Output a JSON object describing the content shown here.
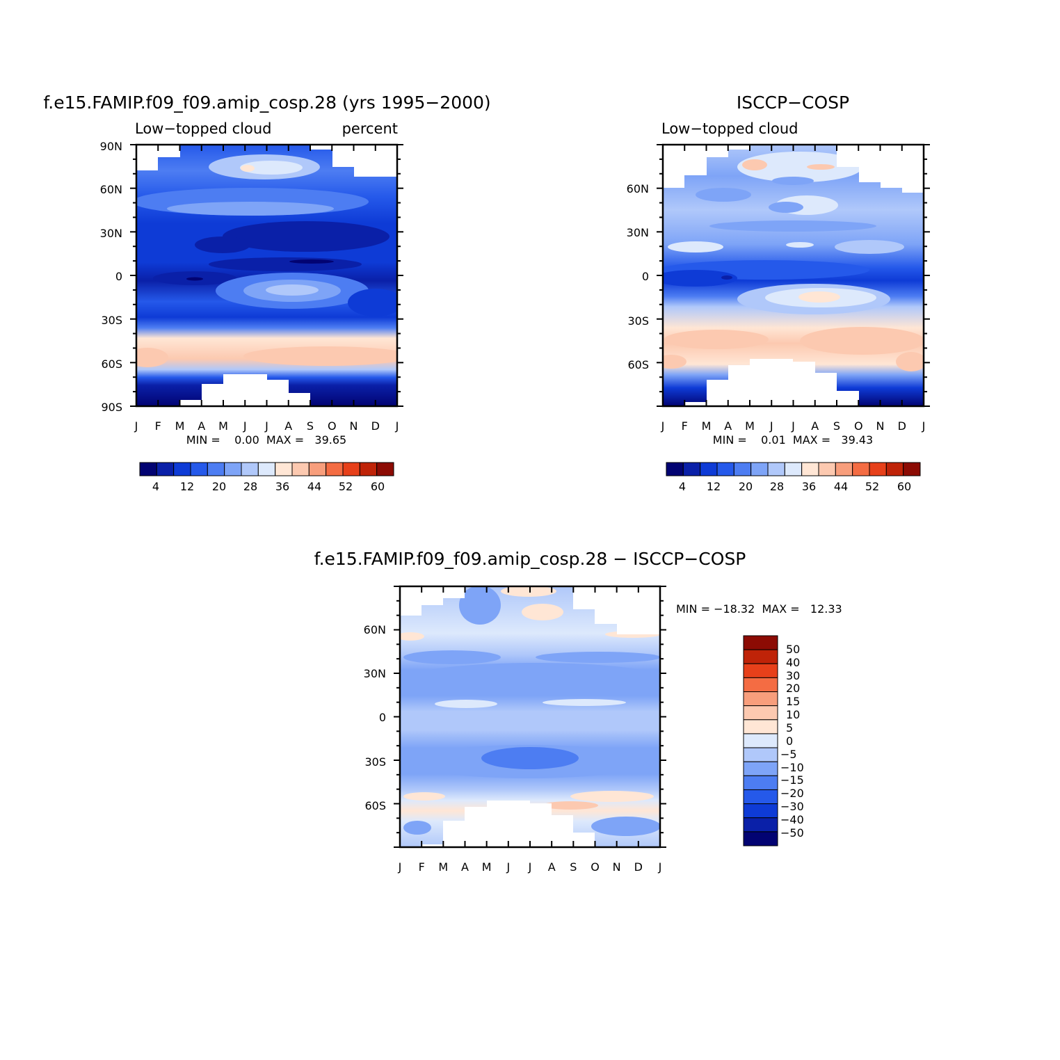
{
  "months": [
    "J",
    "F",
    "M",
    "A",
    "M",
    "J",
    "J",
    "A",
    "S",
    "O",
    "N",
    "D",
    "J"
  ],
  "colors": {
    "abs": [
      "#020372",
      "#0a20a8",
      "#0e3bd6",
      "#2559ea",
      "#4d7df2",
      "#7ea4f7",
      "#b0c8fa",
      "#dde9fc",
      "#ffe6d5",
      "#fcc9b0",
      "#f89e7c",
      "#f46c43",
      "#e7401a",
      "#bf2308",
      "#8c0b04"
    ],
    "diff": [
      "#020372",
      "#0a20a8",
      "#0e3bd6",
      "#2559ea",
      "#4d7df2",
      "#7ea4f7",
      "#b0c8fa",
      "#dde9fc",
      "#ffe6d5",
      "#fcc9b0",
      "#f89e7c",
      "#f46c43",
      "#e7401a",
      "#bf2308",
      "#8c0b04"
    ]
  },
  "panel1": {
    "title": "f.e15.FAMIP.f09_f09.amip_cosp.28 (yrs 1995−2000)",
    "left_label": "Low−topped cloud",
    "right_label": "percent",
    "y_ticks": [
      "90N",
      "60N",
      "30N",
      "0",
      "30S",
      "60S",
      "90S"
    ],
    "min_max": "MIN =    0.00  MAX =   39.65",
    "colorbar_labels": [
      "4",
      "12",
      "20",
      "28",
      "36",
      "44",
      "52",
      "60"
    ]
  },
  "panel2": {
    "title": "ISCCP−COSP",
    "left_label": "Low−topped cloud",
    "y_ticks": [
      "60N",
      "30N",
      "0",
      "30S",
      "60S"
    ],
    "min_max": "MIN =    0.01  MAX =   39.43",
    "colorbar_labels": [
      "4",
      "12",
      "20",
      "28",
      "36",
      "44",
      "52",
      "60"
    ]
  },
  "panel3": {
    "title": "f.e15.FAMIP.f09_f09.amip_cosp.28 − ISCCP−COSP",
    "y_ticks": [
      "60N",
      "30N",
      "0",
      "30S",
      "60S"
    ],
    "min_max": "MIN = −18.32  MAX =   12.33",
    "colorbar_labels": [
      "50",
      "40",
      "30",
      "20",
      "15",
      "10",
      "5",
      "0",
      "−5",
      "−10",
      "−15",
      "−20",
      "−30",
      "−40",
      "−50"
    ]
  },
  "chart_data": [
    {
      "type": "heatmap",
      "title": "f.e15.FAMIP.f09_f09.amip_cosp.28 (yrs 1995−2000)",
      "subtitle_left": "Low−topped cloud",
      "subtitle_right": "percent",
      "x_categories": [
        "J",
        "F",
        "M",
        "A",
        "M",
        "J",
        "J",
        "A",
        "S",
        "O",
        "N",
        "D",
        "J"
      ],
      "y_ticks": [
        "90N",
        "60N",
        "30N",
        "0",
        "30S",
        "60S",
        "90S"
      ],
      "ylim": [
        -90,
        90
      ],
      "latitudes": [
        80,
        70,
        60,
        50,
        40,
        30,
        20,
        10,
        0,
        -10,
        -20,
        -30,
        -40,
        -50,
        -60,
        -70,
        -80
      ],
      "values_latitude_profile_percent": [
        16,
        18,
        22,
        22,
        14,
        10,
        12,
        10,
        8,
        16,
        14,
        20,
        28,
        34,
        36,
        14,
        2
      ],
      "contour_levels": [
        4,
        8,
        12,
        16,
        20,
        24,
        28,
        32,
        36,
        40,
        44,
        48,
        52,
        56,
        60
      ],
      "colorbar_labels": [
        "4",
        "12",
        "20",
        "28",
        "36",
        "44",
        "52",
        "60"
      ],
      "min": 0.0,
      "max": 39.65
    },
    {
      "type": "heatmap",
      "title": "ISCCP−COSP",
      "subtitle_left": "Low−topped cloud",
      "x_categories": [
        "J",
        "F",
        "M",
        "A",
        "M",
        "J",
        "J",
        "A",
        "S",
        "O",
        "N",
        "D",
        "J"
      ],
      "y_ticks": [
        "60N",
        "30N",
        "0",
        "30S",
        "60S"
      ],
      "ylim": [
        -90,
        90
      ],
      "latitudes": [
        80,
        70,
        60,
        50,
        40,
        30,
        20,
        10,
        0,
        -10,
        -20,
        -30,
        -40,
        -50,
        -60,
        -70,
        -80
      ],
      "values_latitude_profile_percent": [
        26,
        30,
        26,
        28,
        26,
        26,
        24,
        16,
        12,
        20,
        26,
        32,
        36,
        36,
        32,
        18,
        4
      ],
      "contour_levels": [
        4,
        8,
        12,
        16,
        20,
        24,
        28,
        32,
        36,
        40,
        44,
        48,
        52,
        56,
        60
      ],
      "colorbar_labels": [
        "4",
        "12",
        "20",
        "28",
        "36",
        "44",
        "52",
        "60"
      ],
      "min": 0.01,
      "max": 39.43
    },
    {
      "type": "heatmap",
      "title": "f.e15.FAMIP.f09_f09.amip_cosp.28 − ISCCP−COSP",
      "x_categories": [
        "J",
        "F",
        "M",
        "A",
        "M",
        "J",
        "J",
        "A",
        "S",
        "O",
        "N",
        "D",
        "J"
      ],
      "y_ticks": [
        "60N",
        "30N",
        "0",
        "30S",
        "60S"
      ],
      "ylim": [
        -90,
        90
      ],
      "latitudes": [
        80,
        70,
        60,
        50,
        40,
        30,
        20,
        10,
        0,
        -10,
        -20,
        -30,
        -40,
        -50,
        -60,
        -70,
        -80
      ],
      "values_latitude_profile_difference": [
        -8,
        -6,
        -3,
        -8,
        -12,
        -14,
        -12,
        -8,
        -8,
        -12,
        -14,
        -12,
        -4,
        3,
        2,
        -6,
        -5
      ],
      "contour_levels": [
        -50,
        -40,
        -30,
        -20,
        -15,
        -10,
        -5,
        0,
        5,
        10,
        15,
        20,
        30,
        40,
        50
      ],
      "colorbar_labels": [
        "50",
        "40",
        "30",
        "20",
        "15",
        "10",
        "5",
        "0",
        "−5",
        "−10",
        "−15",
        "−20",
        "−30",
        "−40",
        "−50"
      ],
      "min": -18.32,
      "max": 12.33
    }
  ]
}
